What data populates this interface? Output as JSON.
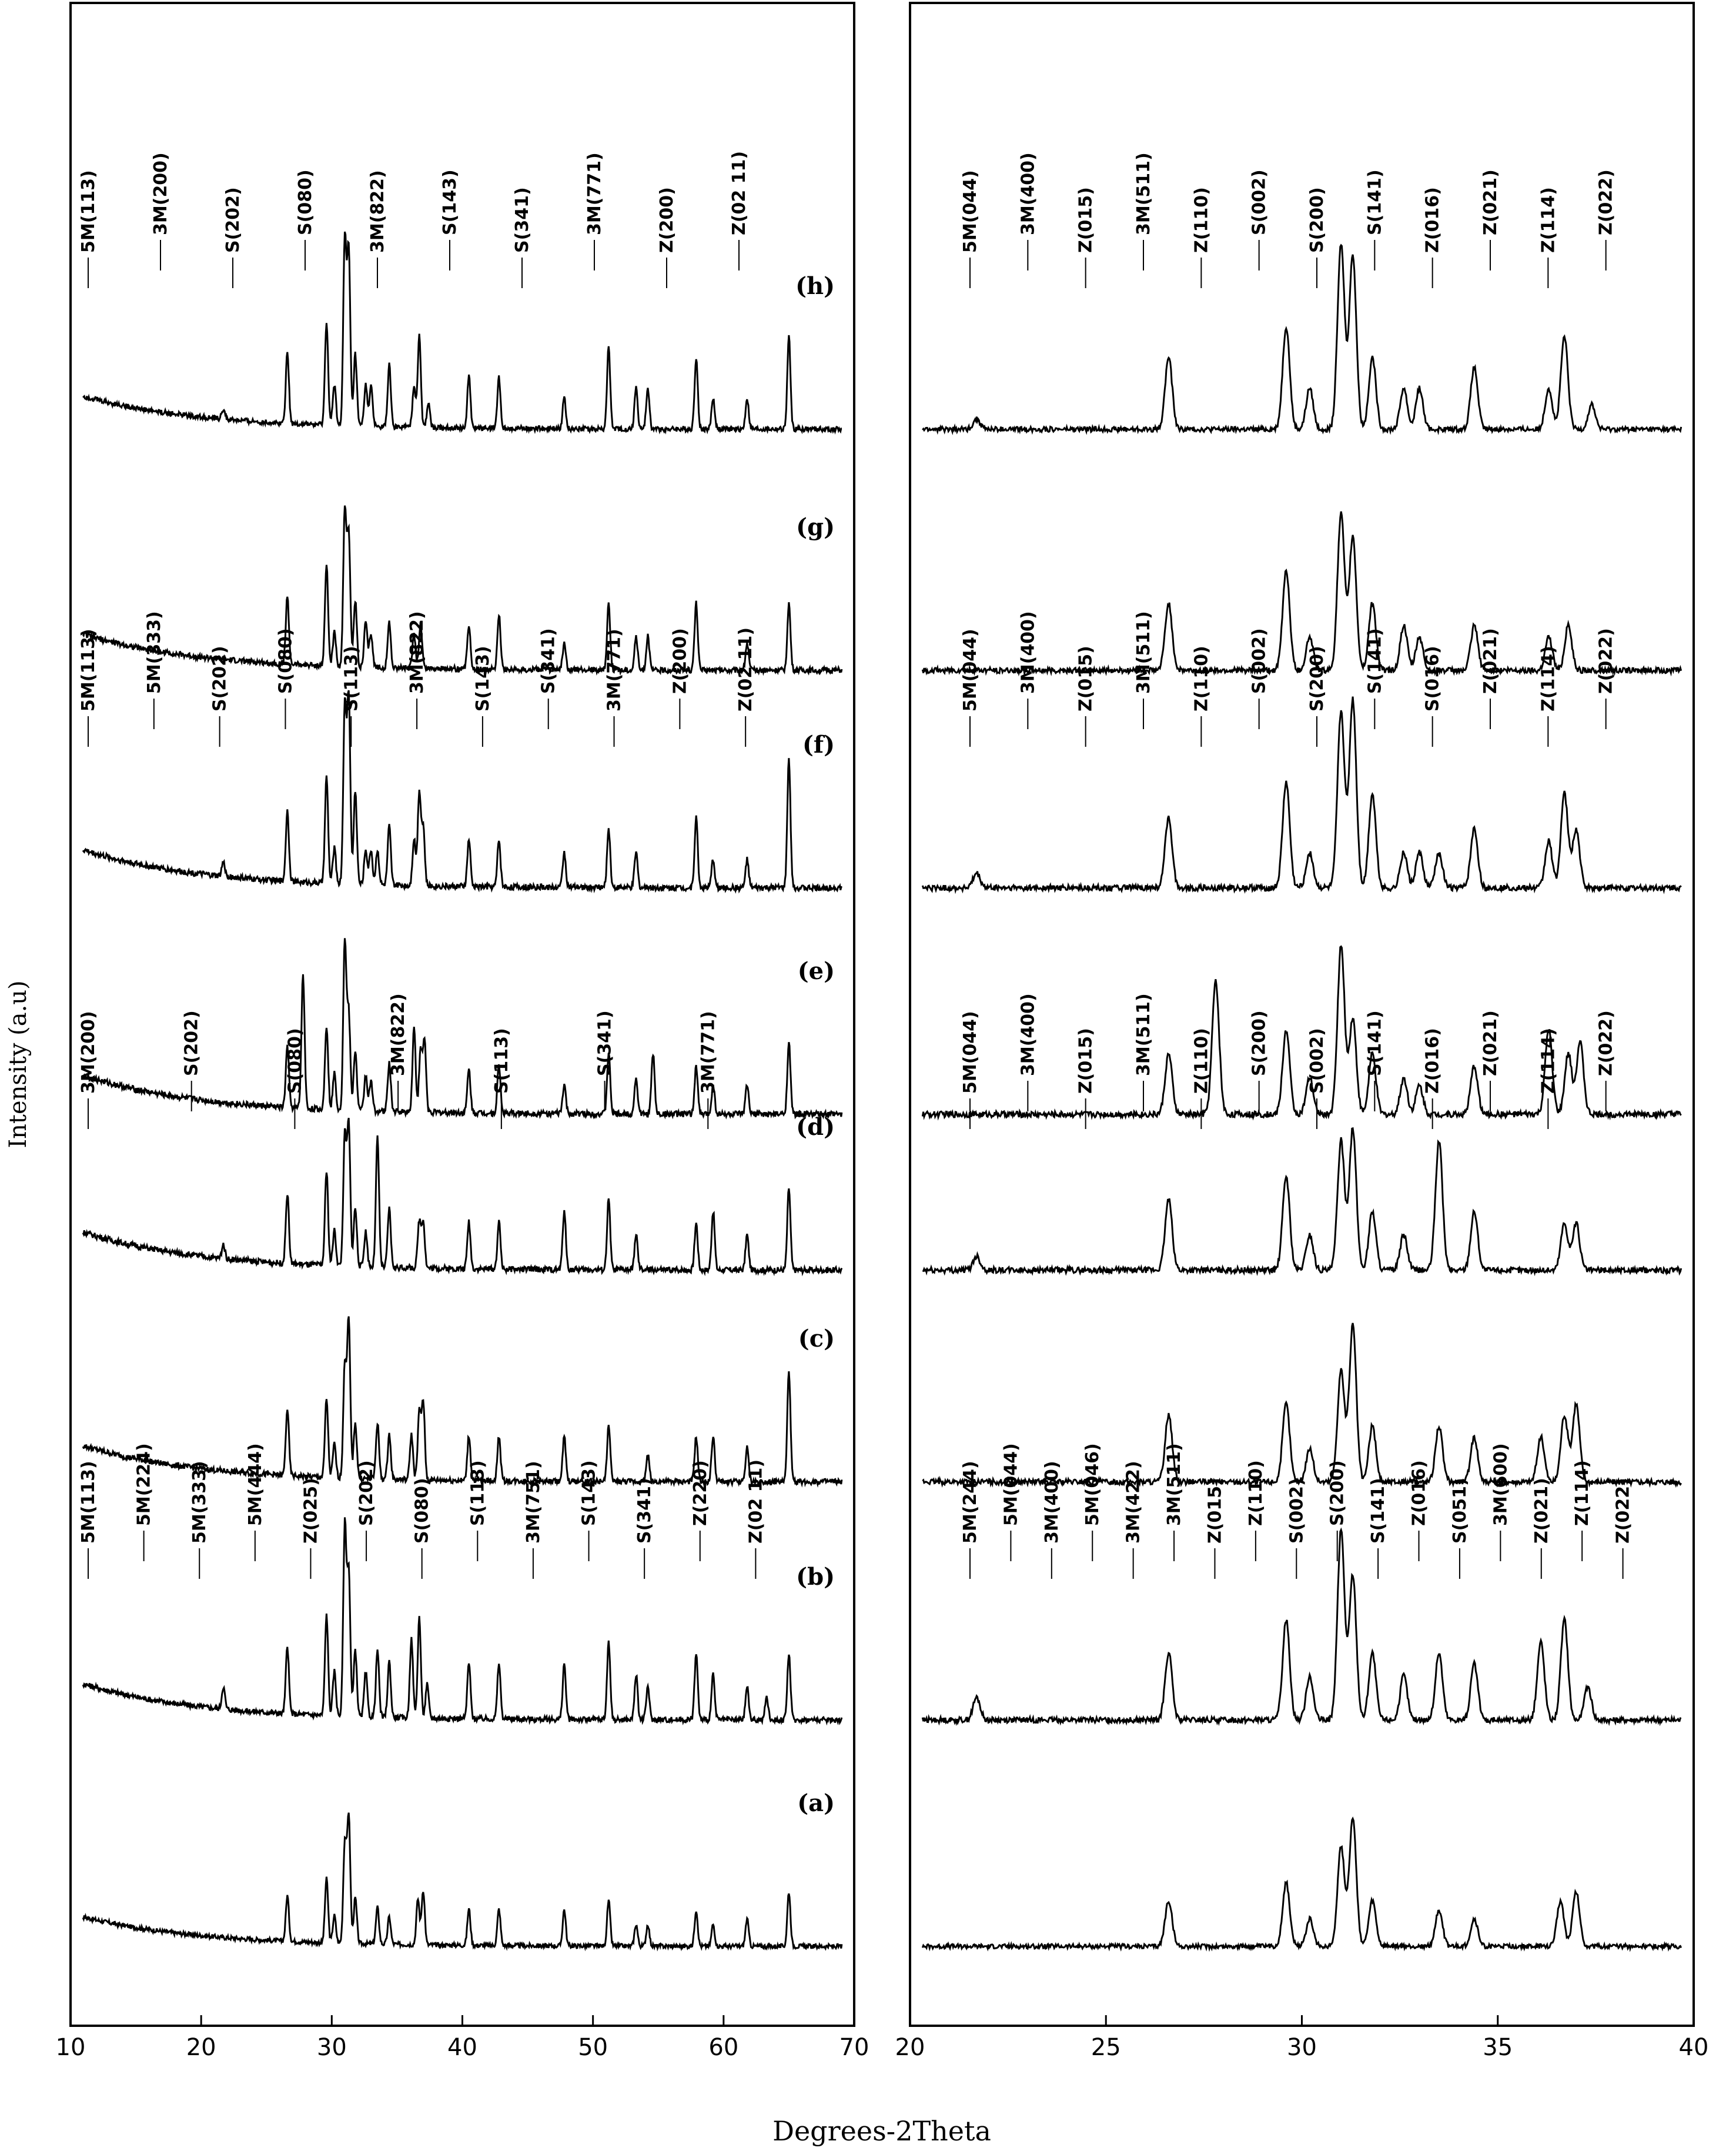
{
  "figure": {
    "y_axis_label": "Intensity (a.u)",
    "x_axis_label": "Degrees-2Theta",
    "line_color": "#000000"
  },
  "chart_data": [
    {
      "type": "line",
      "panel": "left",
      "xlim": [
        10,
        70
      ],
      "x_ticks": [
        "10",
        "20",
        "30",
        "40",
        "50",
        "60",
        "70"
      ],
      "grid": false,
      "series": [
        {
          "name": "(a)",
          "peaks": [
            {
              "x": 26.6,
              "h": 0.25
            },
            {
              "x": 29.6,
              "h": 0.35
            },
            {
              "x": 30.2,
              "h": 0.15
            },
            {
              "x": 31.0,
              "h": 0.55
            },
            {
              "x": 31.3,
              "h": 0.7
            },
            {
              "x": 31.8,
              "h": 0.25
            },
            {
              "x": 33.5,
              "h": 0.2
            },
            {
              "x": 34.4,
              "h": 0.15
            },
            {
              "x": 36.6,
              "h": 0.25
            },
            {
              "x": 37.0,
              "h": 0.3
            },
            {
              "x": 40.5,
              "h": 0.2
            },
            {
              "x": 42.8,
              "h": 0.2
            },
            {
              "x": 47.8,
              "h": 0.2
            },
            {
              "x": 51.2,
              "h": 0.25
            },
            {
              "x": 53.3,
              "h": 0.12
            },
            {
              "x": 54.2,
              "h": 0.12
            },
            {
              "x": 57.9,
              "h": 0.2
            },
            {
              "x": 59.2,
              "h": 0.12
            },
            {
              "x": 61.8,
              "h": 0.15
            },
            {
              "x": 65.0,
              "h": 0.3
            }
          ],
          "annotations": []
        },
        {
          "name": "(b)",
          "peaks": [
            {
              "x": 21.7,
              "h": 0.1
            },
            {
              "x": 26.6,
              "h": 0.3
            },
            {
              "x": 29.6,
              "h": 0.45
            },
            {
              "x": 30.2,
              "h": 0.2
            },
            {
              "x": 31.0,
              "h": 0.85
            },
            {
              "x": 31.3,
              "h": 0.65
            },
            {
              "x": 31.8,
              "h": 0.3
            },
            {
              "x": 32.6,
              "h": 0.2
            },
            {
              "x": 33.5,
              "h": 0.3
            },
            {
              "x": 34.4,
              "h": 0.25
            },
            {
              "x": 36.1,
              "h": 0.35
            },
            {
              "x": 36.7,
              "h": 0.45
            },
            {
              "x": 37.3,
              "h": 0.15
            },
            {
              "x": 40.5,
              "h": 0.25
            },
            {
              "x": 42.8,
              "h": 0.25
            },
            {
              "x": 47.8,
              "h": 0.25
            },
            {
              "x": 51.2,
              "h": 0.35
            },
            {
              "x": 53.3,
              "h": 0.2
            },
            {
              "x": 54.2,
              "h": 0.15
            },
            {
              "x": 57.9,
              "h": 0.3
            },
            {
              "x": 59.2,
              "h": 0.2
            },
            {
              "x": 61.8,
              "h": 0.15
            },
            {
              "x": 63.3,
              "h": 0.1
            },
            {
              "x": 65.0,
              "h": 0.3
            }
          ],
          "annotations": [
            "5M(113)",
            "5M(224)",
            "5M(333)",
            "5M(444)",
            "Z(025)",
            "S(202)",
            "S(080)",
            "S(113)",
            "3M(751)",
            "S(143)",
            "S(341)",
            "Z(220)",
            "Z(02 11)"
          ]
        },
        {
          "name": "(c)",
          "peaks": [
            {
              "x": 26.6,
              "h": 0.3
            },
            {
              "x": 29.6,
              "h": 0.35
            },
            {
              "x": 30.2,
              "h": 0.15
            },
            {
              "x": 31.0,
              "h": 0.5
            },
            {
              "x": 31.3,
              "h": 0.7
            },
            {
              "x": 31.8,
              "h": 0.25
            },
            {
              "x": 33.5,
              "h": 0.25
            },
            {
              "x": 34.4,
              "h": 0.2
            },
            {
              "x": 36.1,
              "h": 0.2
            },
            {
              "x": 36.7,
              "h": 0.3
            },
            {
              "x": 37.0,
              "h": 0.35
            },
            {
              "x": 40.5,
              "h": 0.2
            },
            {
              "x": 42.8,
              "h": 0.2
            },
            {
              "x": 47.8,
              "h": 0.2
            },
            {
              "x": 51.2,
              "h": 0.25
            },
            {
              "x": 54.2,
              "h": 0.12
            },
            {
              "x": 57.9,
              "h": 0.2
            },
            {
              "x": 59.2,
              "h": 0.2
            },
            {
              "x": 61.8,
              "h": 0.15
            },
            {
              "x": 65.0,
              "h": 0.5
            }
          ],
          "annotations": []
        },
        {
          "name": "(d)",
          "peaks": [
            {
              "x": 21.7,
              "h": 0.06
            },
            {
              "x": 26.6,
              "h": 0.3
            },
            {
              "x": 29.6,
              "h": 0.4
            },
            {
              "x": 30.2,
              "h": 0.15
            },
            {
              "x": 31.0,
              "h": 0.55
            },
            {
              "x": 31.3,
              "h": 0.6
            },
            {
              "x": 31.8,
              "h": 0.25
            },
            {
              "x": 32.6,
              "h": 0.15
            },
            {
              "x": 33.5,
              "h": 0.55
            },
            {
              "x": 34.4,
              "h": 0.25
            },
            {
              "x": 36.7,
              "h": 0.2
            },
            {
              "x": 37.0,
              "h": 0.2
            },
            {
              "x": 40.5,
              "h": 0.2
            },
            {
              "x": 42.8,
              "h": 0.2
            },
            {
              "x": 47.8,
              "h": 0.25
            },
            {
              "x": 51.2,
              "h": 0.3
            },
            {
              "x": 53.3,
              "h": 0.15
            },
            {
              "x": 57.9,
              "h": 0.2
            },
            {
              "x": 59.2,
              "h": 0.25
            },
            {
              "x": 61.8,
              "h": 0.15
            },
            {
              "x": 65.0,
              "h": 0.35
            }
          ],
          "annotations": [
            "3M(200)",
            "S(202)",
            "S(080)",
            "3M(822)",
            "S(113)",
            "S(341)",
            "3M(771)"
          ]
        },
        {
          "name": "(e)",
          "peaks": [
            {
              "x": 26.6,
              "h": 0.25
            },
            {
              "x": 27.8,
              "h": 0.55
            },
            {
              "x": 29.6,
              "h": 0.35
            },
            {
              "x": 30.2,
              "h": 0.15
            },
            {
              "x": 31.0,
              "h": 0.7
            },
            {
              "x": 31.3,
              "h": 0.4
            },
            {
              "x": 31.8,
              "h": 0.25
            },
            {
              "x": 32.6,
              "h": 0.15
            },
            {
              "x": 33.0,
              "h": 0.12
            },
            {
              "x": 34.4,
              "h": 0.2
            },
            {
              "x": 36.3,
              "h": 0.35
            },
            {
              "x": 36.8,
              "h": 0.25
            },
            {
              "x": 37.1,
              "h": 0.3
            },
            {
              "x": 40.5,
              "h": 0.18
            },
            {
              "x": 42.8,
              "h": 0.2
            },
            {
              "x": 47.8,
              "h": 0.12
            },
            {
              "x": 51.2,
              "h": 0.25
            },
            {
              "x": 53.3,
              "h": 0.15
            },
            {
              "x": 54.6,
              "h": 0.25
            },
            {
              "x": 57.9,
              "h": 0.2
            },
            {
              "x": 59.2,
              "h": 0.12
            },
            {
              "x": 61.8,
              "h": 0.12
            },
            {
              "x": 65.0,
              "h": 0.3
            }
          ],
          "annotations": []
        },
        {
          "name": "(f)",
          "peaks": [
            {
              "x": 21.7,
              "h": 0.06
            },
            {
              "x": 26.6,
              "h": 0.3
            },
            {
              "x": 29.6,
              "h": 0.45
            },
            {
              "x": 30.2,
              "h": 0.15
            },
            {
              "x": 31.0,
              "h": 0.75
            },
            {
              "x": 31.3,
              "h": 0.8
            },
            {
              "x": 31.8,
              "h": 0.4
            },
            {
              "x": 32.6,
              "h": 0.15
            },
            {
              "x": 33.0,
              "h": 0.15
            },
            {
              "x": 33.5,
              "h": 0.15
            },
            {
              "x": 34.4,
              "h": 0.25
            },
            {
              "x": 36.3,
              "h": 0.2
            },
            {
              "x": 36.7,
              "h": 0.4
            },
            {
              "x": 37.0,
              "h": 0.25
            },
            {
              "x": 40.5,
              "h": 0.2
            },
            {
              "x": 42.8,
              "h": 0.2
            },
            {
              "x": 47.8,
              "h": 0.15
            },
            {
              "x": 51.2,
              "h": 0.25
            },
            {
              "x": 53.3,
              "h": 0.15
            },
            {
              "x": 57.9,
              "h": 0.3
            },
            {
              "x": 59.2,
              "h": 0.12
            },
            {
              "x": 61.8,
              "h": 0.12
            },
            {
              "x": 65.0,
              "h": 0.55
            }
          ],
          "annotations": [
            "5M(113)",
            "5M(333)",
            "S(202)",
            "S(080)",
            "S(113)",
            "3M(822)",
            "S(143)",
            "S(341)",
            "3M(771)",
            "Z(200)",
            "Z(02 11)"
          ]
        },
        {
          "name": "(g)",
          "peaks": [
            {
              "x": 26.6,
              "h": 0.3
            },
            {
              "x": 29.6,
              "h": 0.45
            },
            {
              "x": 30.2,
              "h": 0.15
            },
            {
              "x": 31.0,
              "h": 0.7
            },
            {
              "x": 31.3,
              "h": 0.6
            },
            {
              "x": 31.8,
              "h": 0.3
            },
            {
              "x": 32.6,
              "h": 0.2
            },
            {
              "x": 33.0,
              "h": 0.15
            },
            {
              "x": 34.4,
              "h": 0.2
            },
            {
              "x": 36.3,
              "h": 0.15
            },
            {
              "x": 36.8,
              "h": 0.2
            },
            {
              "x": 40.5,
              "h": 0.2
            },
            {
              "x": 42.8,
              "h": 0.25
            },
            {
              "x": 47.8,
              "h": 0.12
            },
            {
              "x": 51.2,
              "h": 0.3
            },
            {
              "x": 53.3,
              "h": 0.15
            },
            {
              "x": 54.2,
              "h": 0.15
            },
            {
              "x": 57.9,
              "h": 0.3
            },
            {
              "x": 61.8,
              "h": 0.12
            },
            {
              "x": 65.0,
              "h": 0.3
            }
          ],
          "annotations": []
        },
        {
          "name": "(h)",
          "peaks": [
            {
              "x": 21.7,
              "h": 0.05
            },
            {
              "x": 26.6,
              "h": 0.35
            },
            {
              "x": 29.6,
              "h": 0.5
            },
            {
              "x": 30.2,
              "h": 0.2
            },
            {
              "x": 31.0,
              "h": 0.9
            },
            {
              "x": 31.3,
              "h": 0.85
            },
            {
              "x": 31.8,
              "h": 0.35
            },
            {
              "x": 32.6,
              "h": 0.2
            },
            {
              "x": 33.0,
              "h": 0.2
            },
            {
              "x": 34.4,
              "h": 0.3
            },
            {
              "x": 36.3,
              "h": 0.2
            },
            {
              "x": 36.7,
              "h": 0.45
            },
            {
              "x": 37.4,
              "h": 0.12
            },
            {
              "x": 40.5,
              "h": 0.25
            },
            {
              "x": 42.8,
              "h": 0.25
            },
            {
              "x": 47.8,
              "h": 0.15
            },
            {
              "x": 51.2,
              "h": 0.4
            },
            {
              "x": 53.3,
              "h": 0.2
            },
            {
              "x": 54.2,
              "h": 0.2
            },
            {
              "x": 57.9,
              "h": 0.35
            },
            {
              "x": 59.2,
              "h": 0.15
            },
            {
              "x": 61.8,
              "h": 0.15
            },
            {
              "x": 65.0,
              "h": 0.45
            }
          ],
          "annotations": [
            "5M(113)",
            "3M(200)",
            "S(202)",
            "S(080)",
            "3M(822)",
            "S(143)",
            "S(341)",
            "3M(771)",
            "Z(200)",
            "Z(02 11)"
          ]
        }
      ]
    },
    {
      "type": "line",
      "panel": "right",
      "xlim": [
        20,
        40
      ],
      "x_ticks": [
        "20",
        "25",
        "30",
        "35",
        "40"
      ],
      "grid": false,
      "series": [
        {
          "name": "(a)",
          "annotations": []
        },
        {
          "name": "(b)",
          "annotations": [
            "5M(244)",
            "5M(044)",
            "3M(400)",
            "5M(046)",
            "3M(422)",
            "3M(511)",
            "Z(015)",
            "Z(110)",
            "S(002)",
            "S(200)",
            "S(141)",
            "Z(016)",
            "S(051)",
            "3M(600)",
            "Z(021)",
            "Z(114)",
            "Z(022)"
          ]
        },
        {
          "name": "(c)",
          "annotations": []
        },
        {
          "name": "(d)",
          "annotations": [
            "5M(044)",
            "3M(400)",
            "Z(015)",
            "3M(511)",
            "Z(110)",
            "S(200)",
            "S(002)",
            "S(141)",
            "Z(016)",
            "Z(021)",
            "Z(114)",
            "Z(022)"
          ]
        },
        {
          "name": "(e)",
          "annotations": []
        },
        {
          "name": "(f)",
          "annotations": [
            "5M(044)",
            "3M(400)",
            "Z(015)",
            "3M(511)",
            "Z(110)",
            "S(002)",
            "S(200)",
            "S(141)",
            "S(016)",
            "Z(021)",
            "Z(114)",
            "Z(022)"
          ]
        },
        {
          "name": "(g)",
          "annotations": []
        },
        {
          "name": "(h)",
          "annotations": [
            "5M(044)",
            "3M(400)",
            "Z(015)",
            "3M(511)",
            "Z(110)",
            "S(002)",
            "S(200)",
            "S(141)",
            "Z(016)",
            "Z(021)",
            "Z(114)",
            "Z(022)"
          ]
        }
      ]
    }
  ]
}
